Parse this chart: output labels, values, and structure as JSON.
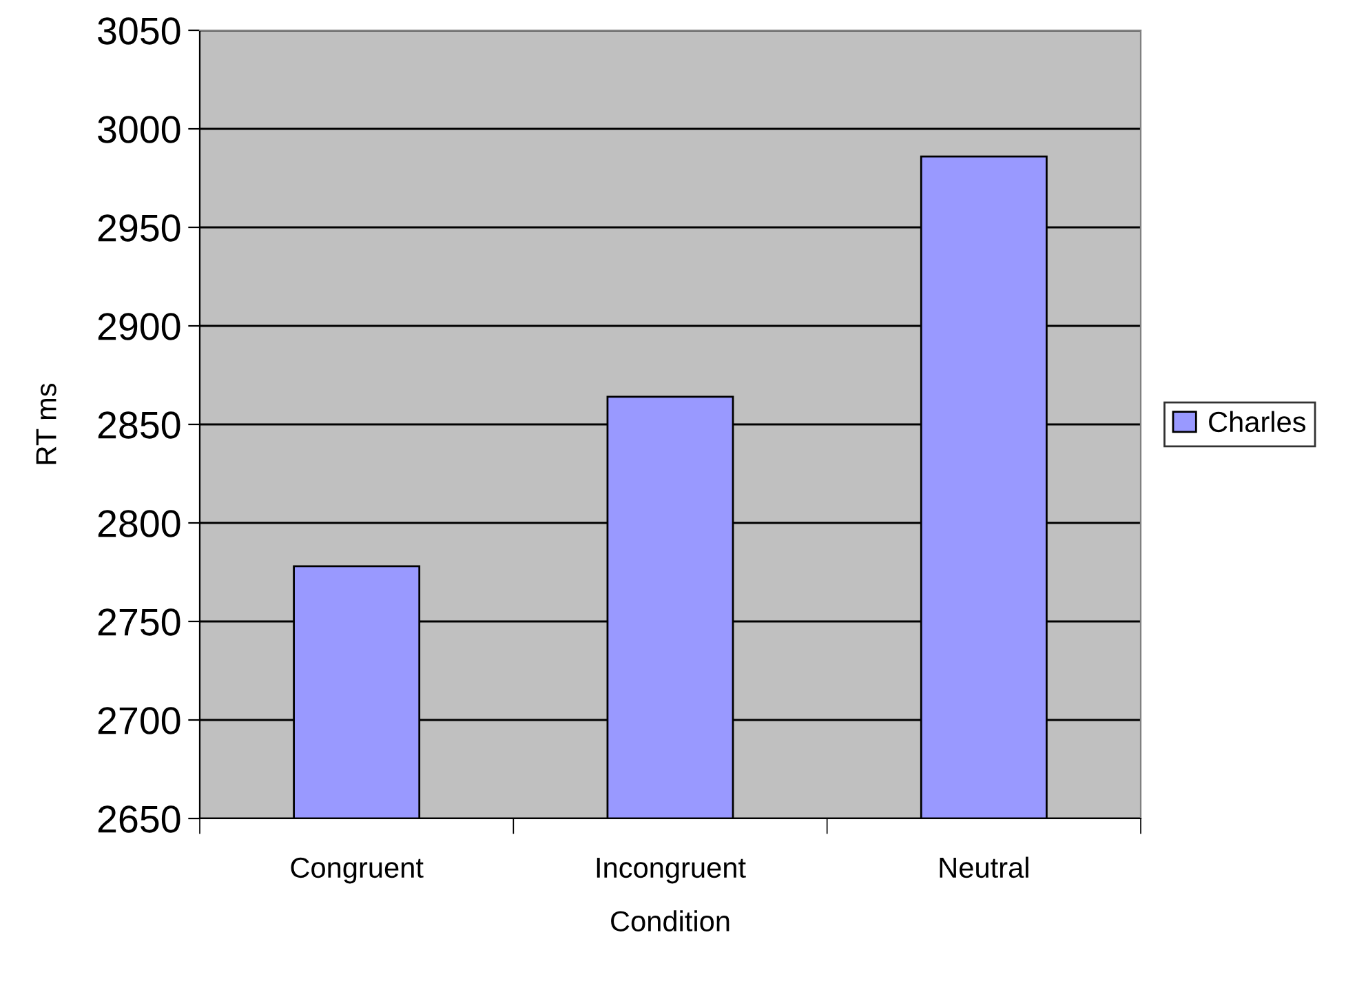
{
  "chart_data": {
    "type": "bar",
    "xlabel": "Condition",
    "ylabel": "RT ms",
    "categories": [
      "Congruent",
      "Incongruent",
      "Neutral"
    ],
    "series": [
      {
        "name": "Charles",
        "color": "#9999ff",
        "values": [
          2778,
          2864,
          2986
        ]
      }
    ],
    "ylim": [
      2650,
      3050
    ],
    "yticks": [
      2650,
      2700,
      2750,
      2800,
      2850,
      2900,
      2950,
      3000,
      3050
    ],
    "grid": "y",
    "legend": "right"
  }
}
